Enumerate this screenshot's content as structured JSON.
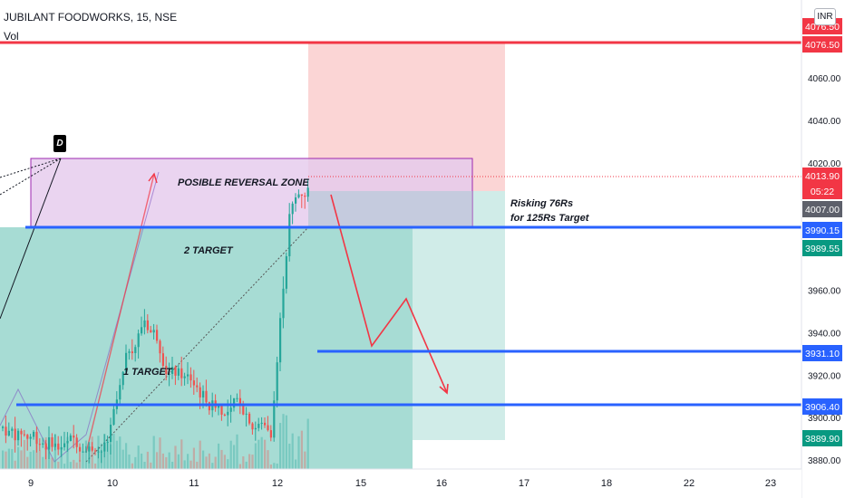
{
  "header": {
    "title": "JUBILANT FOODWORKS, 15, NSE",
    "vol_label": "Vol",
    "currency": "INR"
  },
  "annotations": {
    "d_badge": "D",
    "reversal_zone": "POSIBLE REVERSAL ZONE",
    "target_2": "2 TARGET",
    "target_1": "1 TARGET",
    "risk_line1": "Risking 76Rs",
    "risk_line2": "for 125Rs Target"
  },
  "colors": {
    "red_line": "#f23645",
    "blue_line": "#2962ff",
    "teal_zone": "#5fbfb0",
    "light_teal_zone": "#cbeae6",
    "stop_zone": "#fbd5d5",
    "reversal_zone": "#e5c9ec",
    "bull_candle": "#26a69a",
    "bear_candle": "#ef5350",
    "current_price_badge": "#f23645",
    "teal_badge": "#089981",
    "gray_badge": "#5d606b"
  },
  "chart_data": {
    "type": "candlestick",
    "symbol": "JUBILANT FOODWORKS",
    "interval": "15",
    "exchange": "NSE",
    "y_axis_ticks": [
      {
        "value": 4060.0,
        "label": "4060.00"
      },
      {
        "value": 4040.0,
        "label": "4040.00"
      },
      {
        "value": 4020.0,
        "label": "4020.00"
      },
      {
        "value": 3960.0,
        "label": "3960.00"
      },
      {
        "value": 3940.0,
        "label": "3940.00"
      },
      {
        "value": 3920.0,
        "label": "3920.00"
      },
      {
        "value": 3900.0,
        "label": "3900.00"
      },
      {
        "value": 3880.0,
        "label": "3880.00"
      }
    ],
    "x_axis_ticks": [
      "9",
      "10",
      "11",
      "12",
      "15",
      "16",
      "17",
      "18",
      "22",
      "23"
    ],
    "price_labels": [
      {
        "label": "4076.50",
        "kind": "red"
      },
      {
        "label": "4076.50",
        "kind": "red"
      },
      {
        "label": "4013.90",
        "kind": "current"
      },
      {
        "label": "05:22",
        "kind": "countdown"
      },
      {
        "label": "4007.00",
        "kind": "gray"
      },
      {
        "label": "3990.15",
        "kind": "blue"
      },
      {
        "label": "3989.55",
        "kind": "teal"
      },
      {
        "label": "3931.10",
        "kind": "blue"
      },
      {
        "label": "3906.40",
        "kind": "blue"
      },
      {
        "label": "3889.90",
        "kind": "teal"
      }
    ],
    "horizontal_levels": [
      {
        "price": 4076.5,
        "color": "red"
      },
      {
        "price": 3990.15,
        "color": "blue"
      },
      {
        "price": 3931.1,
        "color": "blue"
      },
      {
        "price": 3906.4,
        "color": "blue"
      }
    ],
    "current_price": 4013.9,
    "trade_setup": {
      "entry": 4007.0,
      "stop": 4076.5,
      "target": 3889.9
    }
  }
}
